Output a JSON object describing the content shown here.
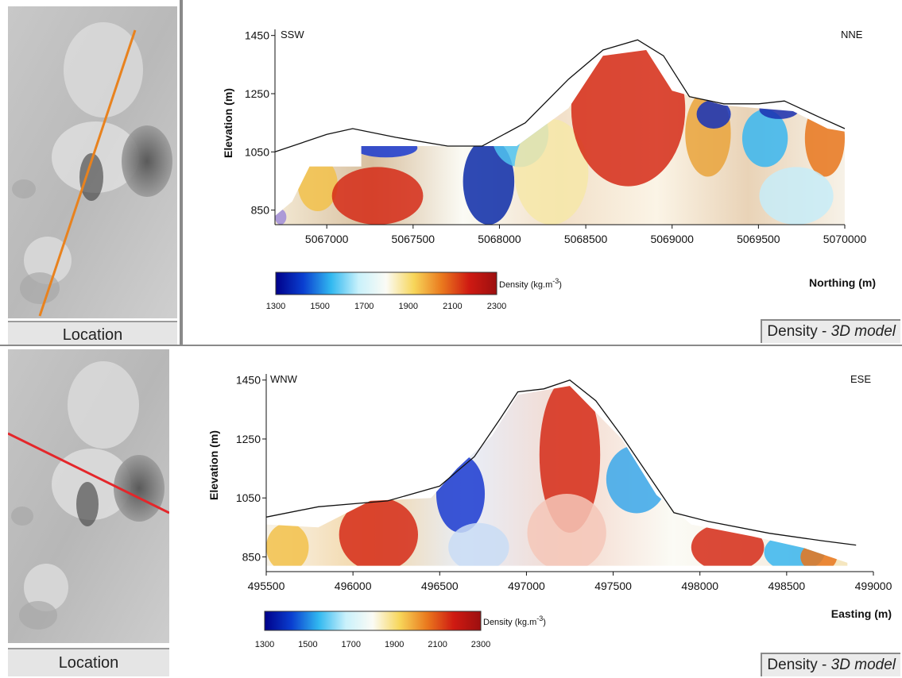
{
  "panels": [
    {
      "location_label": "Location",
      "model_label_main": "Density - ",
      "model_label_italic": "3D model",
      "profile_line_color": "#e8821e"
    },
    {
      "location_label": "Location",
      "model_label_main": "Density - ",
      "model_label_italic": "3D model",
      "profile_line_color": "#e4262a"
    }
  ],
  "colorbar": {
    "stops": [
      "#00008a",
      "#0a3fd0",
      "#31b8f0",
      "#c9f1fb",
      "#fbfbf5",
      "#f7d65a",
      "#ea7a1e",
      "#cf1a12",
      "#9c0f0f"
    ],
    "ticks": [
      "1300",
      "1500",
      "1700",
      "1900",
      "2100",
      "2300"
    ],
    "label": "Density (kg.m",
    "label_sup": "-3",
    "label_close": ")"
  },
  "chart_data": [
    {
      "type": "heatmap",
      "title": "",
      "direction_left": "SSW",
      "direction_right": "NNE",
      "xlabel": "Northing (m)",
      "ylabel": "Elevation (m)",
      "xlim": [
        5066700,
        5070000
      ],
      "ylim": [
        800,
        1460
      ],
      "x_ticks": [
        5067000,
        5067500,
        5068000,
        5068500,
        5069000,
        5069500,
        5070000
      ],
      "y_ticks": [
        850,
        1050,
        1250,
        1450
      ],
      "topography": [
        [
          5066700,
          1050
        ],
        [
          5067000,
          1110
        ],
        [
          5067150,
          1130
        ],
        [
          5067400,
          1100
        ],
        [
          5067700,
          1070
        ],
        [
          5067900,
          1070
        ],
        [
          5068150,
          1150
        ],
        [
          5068400,
          1300
        ],
        [
          5068600,
          1400
        ],
        [
          5068800,
          1435
        ],
        [
          5068950,
          1380
        ],
        [
          5069100,
          1240
        ],
        [
          5069300,
          1215
        ],
        [
          5069500,
          1215
        ],
        [
          5069650,
          1225
        ],
        [
          5069850,
          1170
        ],
        [
          5070000,
          1130
        ]
      ],
      "base_profile": [
        [
          5066700,
          800
        ],
        [
          5066700,
          830
        ],
        [
          5066800,
          880
        ],
        [
          5066900,
          1000
        ],
        [
          5067200,
          1000
        ],
        [
          5067200,
          1070
        ],
        [
          5068100,
          1070
        ],
        [
          5068400,
          1200
        ],
        [
          5068600,
          1380
        ],
        [
          5068850,
          1400
        ],
        [
          5069000,
          1260
        ],
        [
          5069300,
          1210
        ],
        [
          5069700,
          1190
        ],
        [
          5069900,
          1130
        ],
        [
          5070000,
          1120
        ],
        [
          5070000,
          800
        ]
      ],
      "colorbar_ticks": [
        1300,
        1500,
        1700,
        1900,
        2100,
        2300
      ]
    },
    {
      "type": "heatmap",
      "title": "",
      "direction_left": "WNW",
      "direction_right": "ESE",
      "xlabel": "Easting (m)",
      "ylabel": "Elevation (m)",
      "xlim": [
        495500,
        499000
      ],
      "ylim": [
        800,
        1460
      ],
      "x_ticks": [
        495500,
        496000,
        496500,
        497000,
        497500,
        498000,
        498500,
        499000
      ],
      "y_ticks": [
        850,
        1050,
        1250,
        1450
      ],
      "topography": [
        [
          495500,
          985
        ],
        [
          495800,
          1020
        ],
        [
          496200,
          1040
        ],
        [
          496500,
          1090
        ],
        [
          496700,
          1190
        ],
        [
          496850,
          1320
        ],
        [
          496950,
          1410
        ],
        [
          497100,
          1420
        ],
        [
          497250,
          1450
        ],
        [
          497400,
          1380
        ],
        [
          497550,
          1260
        ],
        [
          497700,
          1130
        ],
        [
          497850,
          1000
        ],
        [
          498050,
          970
        ],
        [
          498400,
          930
        ],
        [
          498700,
          905
        ],
        [
          498900,
          890
        ]
      ],
      "base_profile": [
        [
          495500,
          820
        ],
        [
          495500,
          960
        ],
        [
          495800,
          950
        ],
        [
          496100,
          1040
        ],
        [
          496450,
          1050
        ],
        [
          496600,
          1150
        ],
        [
          496800,
          1260
        ],
        [
          496950,
          1400
        ],
        [
          497250,
          1430
        ],
        [
          497550,
          1250
        ],
        [
          497750,
          1060
        ],
        [
          497950,
          960
        ],
        [
          498300,
          920
        ],
        [
          498600,
          880
        ],
        [
          498850,
          830
        ],
        [
          498850,
          820
        ]
      ],
      "colorbar_ticks": [
        1300,
        1500,
        1700,
        1900,
        2100,
        2300
      ]
    }
  ]
}
